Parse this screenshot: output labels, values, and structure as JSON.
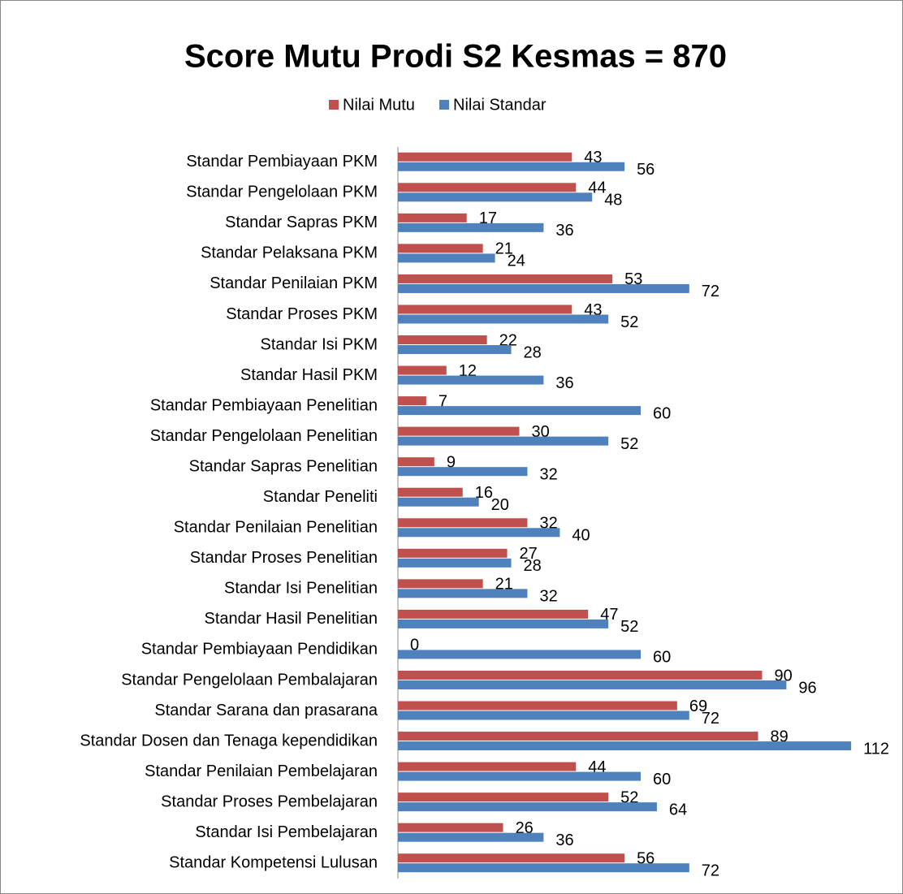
{
  "chart_data": {
    "type": "hbar",
    "title": "Score Mutu Prodi S2 Kesmas = 870",
    "categories": [
      "Standar Pembiayaan PKM",
      "Standar Pengelolaan PKM",
      "Standar Sapras PKM",
      "Standar Pelaksana PKM",
      "Standar Penilaian PKM",
      "Standar Proses PKM",
      "Standar Isi PKM",
      "Standar Hasil PKM",
      "Standar Pembiayaan Penelitian",
      "Standar Pengelolaan Penelitian",
      "Standar Sapras Penelitian",
      "Standar Peneliti",
      "Standar Penilaian Penelitian",
      "Standar Proses Penelitian",
      "Standar Isi Penelitian",
      "Standar Hasil Penelitian",
      "Standar Pembiayaan Pendidikan",
      "Standar Pengelolaan Pembalajaran",
      "Standar Sarana dan prasarana",
      "Standar Dosen dan Tenaga kependidikan",
      "Standar Penilaian Pembelajaran",
      "Standar Proses Pembelajaran",
      "Standar Isi Pembelajaran",
      "Standar Kompetensi Lulusan"
    ],
    "series": [
      {
        "name": "Nilai Mutu",
        "color": "#c0504d",
        "values": [
          43,
          44,
          17,
          21,
          53,
          43,
          22,
          12,
          7,
          30,
          9,
          16,
          32,
          27,
          21,
          47,
          0,
          90,
          69,
          89,
          44,
          52,
          26,
          56
        ]
      },
      {
        "name": "Nilai Standar",
        "color": "#4f81bd",
        "values": [
          56,
          48,
          36,
          24,
          72,
          52,
          28,
          36,
          60,
          52,
          32,
          20,
          40,
          28,
          32,
          52,
          60,
          96,
          72,
          112,
          60,
          64,
          36,
          72
        ]
      }
    ],
    "xlim": [
      0,
      120
    ],
    "legend": "top"
  }
}
